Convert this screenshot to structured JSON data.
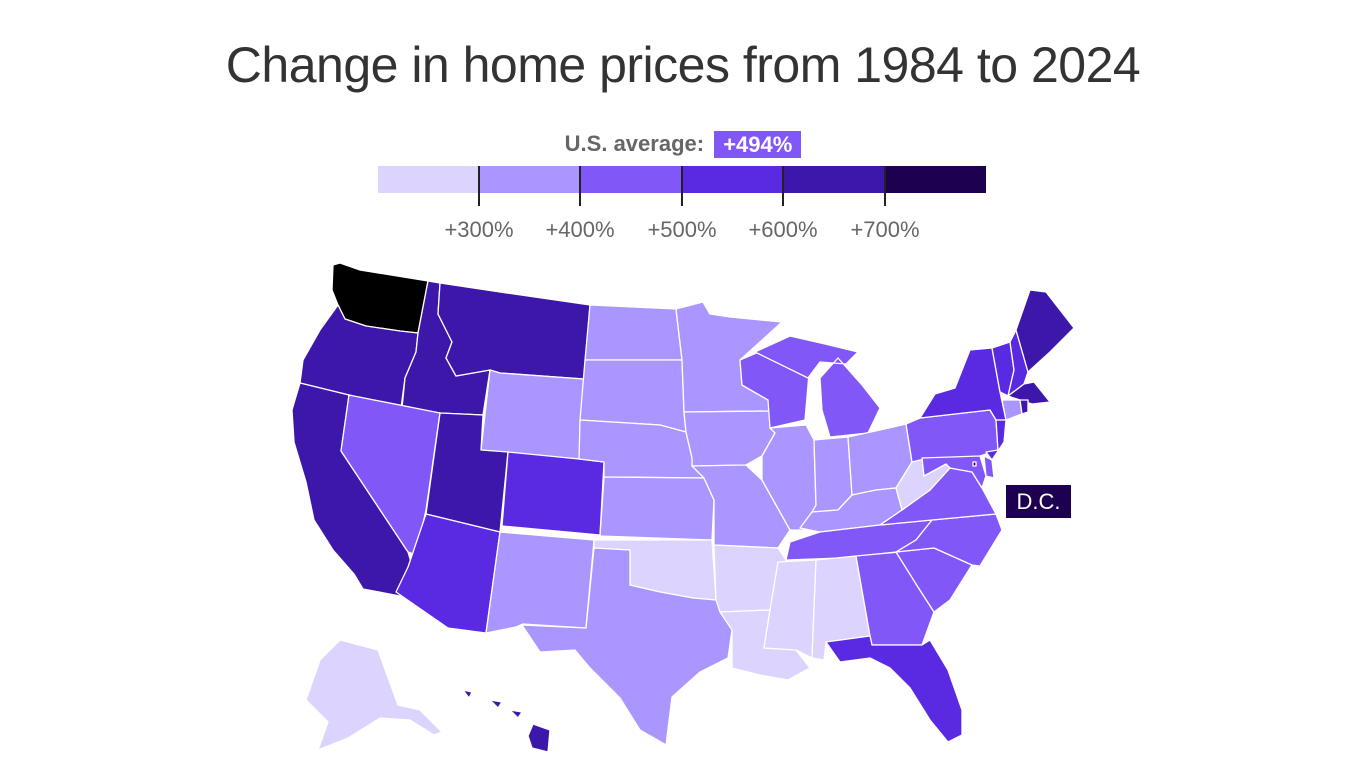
{
  "title": "Change in home prices from 1984 to 2024",
  "legend": {
    "avg_label": "U.S. average:",
    "avg_value": "+494%",
    "bins": [
      "#dcd3fe",
      "#ab95ff",
      "#8157f7",
      "#5a29e2",
      "#3d17aa",
      "#1e0050"
    ],
    "ticks": [
      "+300%",
      "+400%",
      "+500%",
      "+600%",
      "+700%"
    ]
  },
  "dc_label": "D.C.",
  "states": {
    "WA": 6,
    "OR": 4,
    "CA": 4,
    "ID": 4,
    "MT": 4,
    "UT": 4,
    "NV": 2,
    "AZ": 3,
    "WY": 1,
    "CO": 3,
    "NM": 1,
    "ND": 1,
    "SD": 1,
    "NE": 1,
    "KS": 1,
    "OK": 0,
    "TX": 1,
    "MN": 1,
    "IA": 1,
    "MO": 1,
    "AR": 0,
    "LA": 0,
    "WI": 2,
    "IL": 1,
    "MI": 2,
    "IN": 1,
    "OH": 1,
    "KY": 1,
    "TN": 2,
    "MS": 0,
    "AL": 0,
    "GA": 2,
    "FL": 3,
    "SC": 2,
    "NC": 2,
    "VA": 2,
    "WV": 0,
    "PA": 2,
    "NY": 3,
    "VT": 3,
    "NH": 3,
    "ME": 4,
    "MA": 4,
    "RI": 4,
    "CT": 1,
    "NJ": 3,
    "DE": 2,
    "MD": 2,
    "AK": 0,
    "HI": 4,
    "DC": 5
  }
}
